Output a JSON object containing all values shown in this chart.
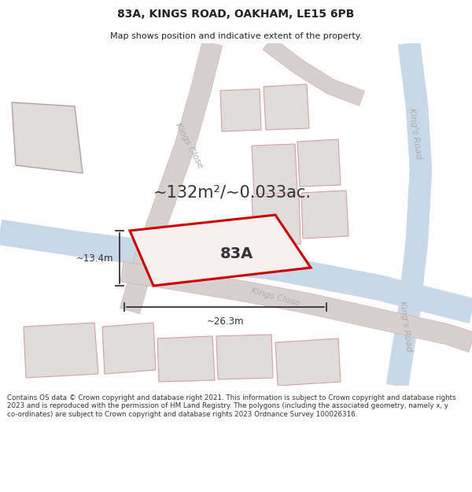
{
  "title_line1": "83A, KINGS ROAD, OAKHAM, LE15 6PB",
  "title_line2": "Map shows position and indicative extent of the property.",
  "area_text": "~132m²/~0.033ac.",
  "label_83A": "83A",
  "dim_height": "~13.4m",
  "dim_width": "~26.3m",
  "footer_text": "Contains OS data © Crown copyright and database right 2021. This information is subject to Crown copyright and database rights 2023 and is reproduced with the permission of HM Land Registry. The polygons (including the associated geometry, namely x, y co-ordinates) are subject to Crown copyright and database rights 2023 Ordnance Survey 100026316.",
  "map_bg": "#f0eeee",
  "highlight_color": "#cc0000",
  "building_fill": "#e0dcdc",
  "building_stroke": "#d4a0a0",
  "road_label_color": "#aaaaaa",
  "dim_color": "#333333",
  "title_color": "#222222",
  "footer_color": "#333333",
  "road_pink": "#e8cccc",
  "road_pink_edge": "#d4a8a8",
  "road_blue": "#c8d8e8",
  "road_grey": "#d8d0d0"
}
